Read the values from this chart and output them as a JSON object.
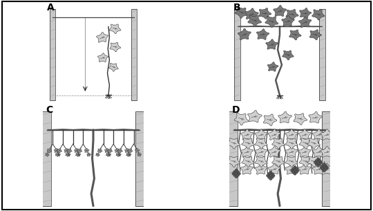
{
  "bg_color": "#ffffff",
  "post_fill": "#c8c8c8",
  "post_edge": "#555555",
  "wire_color": "#444444",
  "vine_color": "#333333",
  "leaf_light": "#d0d0d0",
  "leaf_mid": "#a0a0a0",
  "leaf_dark": "#787878",
  "leaf_edge": "#333333",
  "grape_dark": "#555555",
  "grape_fill": "#666666",
  "ground_color": "#888888",
  "label_A": "A",
  "label_B": "B",
  "label_C": "C",
  "label_D": "D"
}
